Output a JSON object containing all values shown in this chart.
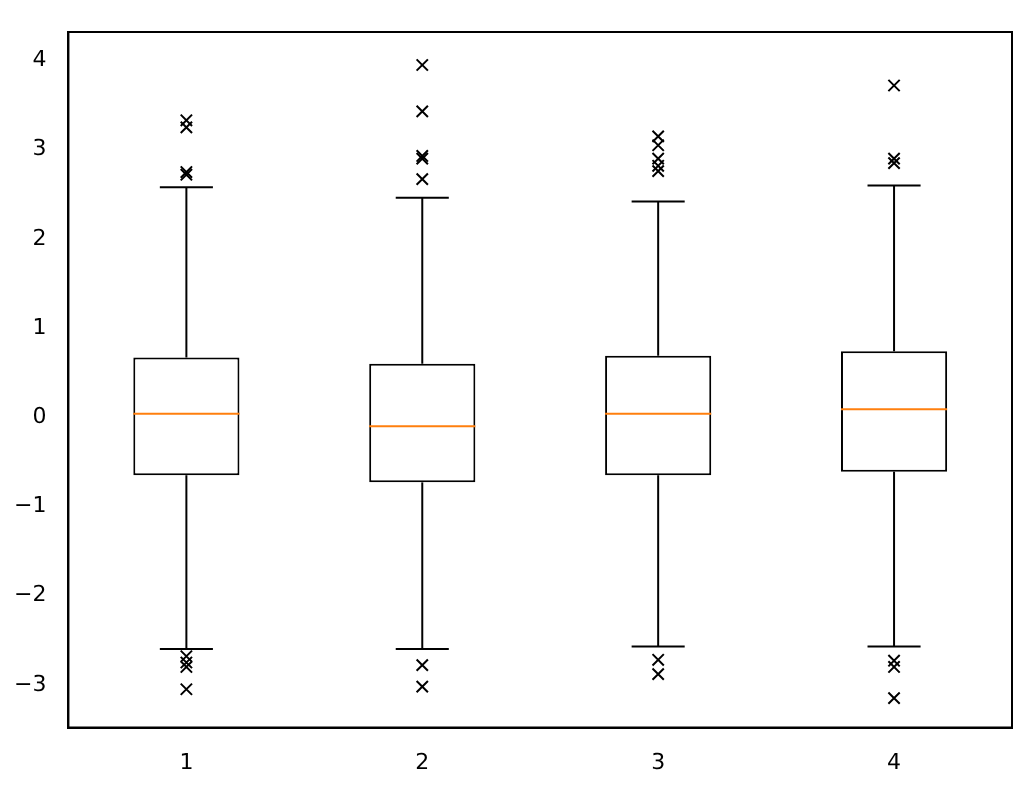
{
  "chart_data": {
    "type": "box",
    "categories": [
      "1",
      "2",
      "3",
      "4"
    ],
    "boxes": [
      {
        "low": -2.6,
        "q1": -0.65,
        "median": 0.04,
        "q3": 0.67,
        "high": 2.58,
        "outliers": [
          3.33,
          3.25,
          2.75,
          2.72,
          -2.68,
          -2.75,
          -2.8,
          -3.05
        ]
      },
      {
        "low": -2.6,
        "q1": -0.73,
        "median": -0.1,
        "q3": 0.6,
        "high": 2.46,
        "outliers": [
          3.95,
          3.43,
          2.93,
          2.9,
          2.67,
          -2.78,
          -3.02
        ]
      },
      {
        "low": -2.57,
        "q1": -0.65,
        "median": 0.04,
        "q3": 0.69,
        "high": 2.42,
        "outliers": [
          3.15,
          3.05,
          2.9,
          2.82,
          2.76,
          -2.72,
          -2.88
        ]
      },
      {
        "low": -2.57,
        "q1": -0.61,
        "median": 0.09,
        "q3": 0.74,
        "high": 2.6,
        "outliers": [
          3.72,
          2.9,
          2.85,
          -2.73,
          -2.8,
          -3.15
        ]
      }
    ],
    "ylim": [
      -3.48,
      4.32
    ],
    "yticks": [
      -3,
      -2,
      -1,
      0,
      1,
      2,
      3,
      4
    ],
    "marker": "cross"
  }
}
